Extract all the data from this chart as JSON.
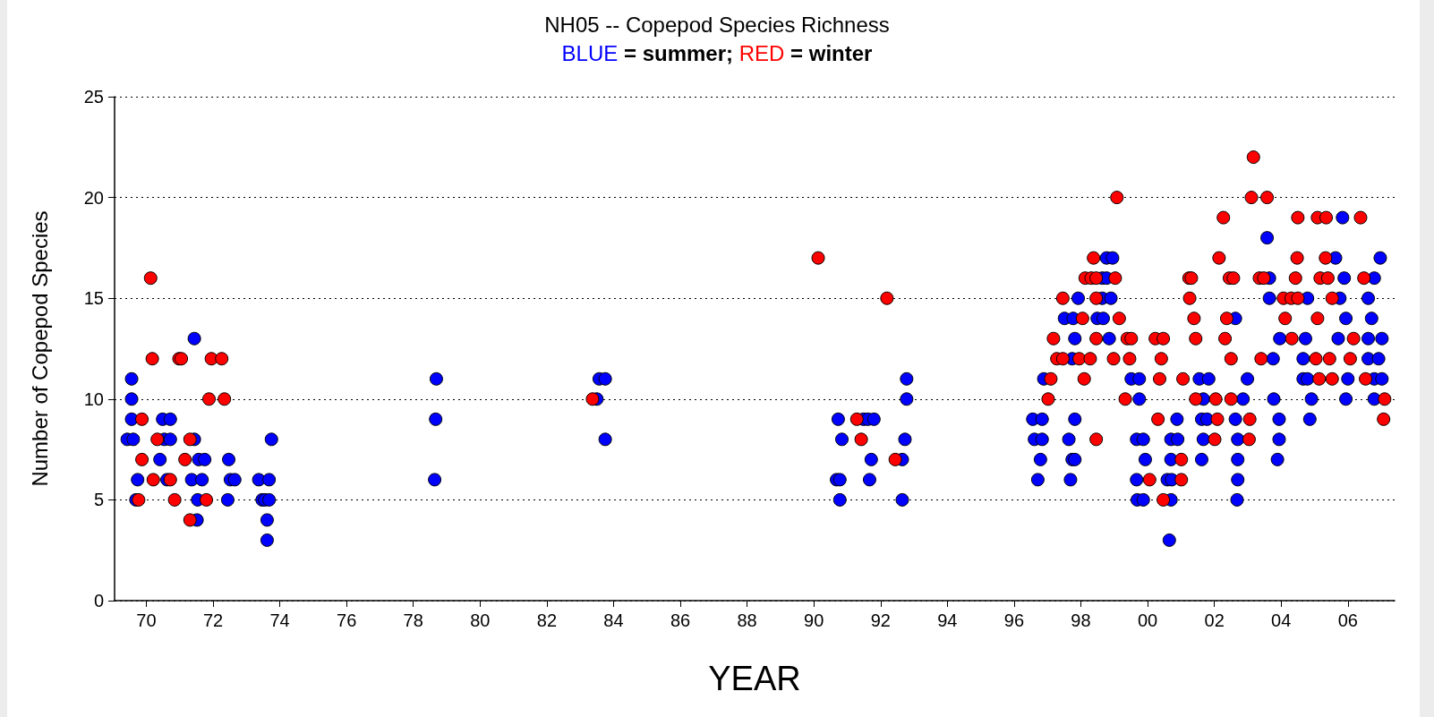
{
  "chart_data": {
    "type": "scatter",
    "title": "NH05 -- Copepod Species Richness",
    "subtitle": "BLUE = summer; RED = winter",
    "xlabel": "YEAR",
    "ylabel": "Number of Copepod Species",
    "xlim": [
      1969.05,
      2007.4
    ],
    "ylim": [
      0,
      25
    ],
    "yticks": [
      0,
      5,
      10,
      15,
      20,
      25
    ],
    "xticks": [
      {
        "value": 1970,
        "label": "70"
      },
      {
        "value": 1972,
        "label": "72"
      },
      {
        "value": 1974,
        "label": "74"
      },
      {
        "value": 1976,
        "label": "76"
      },
      {
        "value": 1978,
        "label": "78"
      },
      {
        "value": 1980,
        "label": "80"
      },
      {
        "value": 1982,
        "label": "82"
      },
      {
        "value": 1984,
        "label": "84"
      },
      {
        "value": 1986,
        "label": "86"
      },
      {
        "value": 1988,
        "label": "88"
      },
      {
        "value": 1990,
        "label": "90"
      },
      {
        "value": 1992,
        "label": "92"
      },
      {
        "value": 1994,
        "label": "94"
      },
      {
        "value": 1996,
        "label": "96"
      },
      {
        "value": 1998,
        "label": "98"
      },
      {
        "value": 2000,
        "label": "00"
      },
      {
        "value": 2002,
        "label": "02"
      },
      {
        "value": 2004,
        "label": "04"
      },
      {
        "value": 2006,
        "label": "06"
      }
    ],
    "grid": "y",
    "marker": "circle",
    "series": [
      {
        "color": "#0000ff",
        "x": [
          1969.56,
          1969.56,
          1969.56,
          1969.43,
          1969.61,
          1969.74,
          1969.69,
          1970.41,
          1970.49,
          1970.54,
          1970.62,
          1970.72,
          1970.72,
          1971.44,
          1971.44,
          1971.36,
          1971.52,
          1971.57,
          1971.67,
          1971.54,
          1971.75,
          1972.47,
          1972.52,
          1972.65,
          1972.44,
          1973.37,
          1973.47,
          1973.55,
          1973.62,
          1973.62,
          1973.68,
          1973.75,
          1973.68,
          1978.69,
          1978.67,
          1978.64,
          1983.5,
          1983.57,
          1983.75,
          1983.75,
          1990.73,
          1990.68,
          1990.78,
          1990.78,
          1990.84,
          1991.49,
          1991.62,
          1991.8,
          1991.72,
          1991.67,
          1992.65,
          1992.73,
          1992.65,
          1992.78,
          1992.78,
          1998.77,
          1998.95,
          1998.64,
          1998.77,
          1997.92,
          1998.64,
          1998.9,
          1997.51,
          1997.77,
          1998.49,
          1998.67,
          1997.82,
          1998.85,
          1997.74,
          1996.89,
          1999.51,
          1999.75,
          2001.55,
          1999.75,
          2001.67,
          1996.56,
          1996.84,
          1997.82,
          2000.88,
          2001.62,
          1996.61,
          1996.84,
          1997.64,
          1999.67,
          1999.87,
          2000.7,
          2000.9,
          2001.67,
          1996.79,
          1997.74,
          1997.82,
          1999.93,
          2000.7,
          2001.62,
          1996.71,
          1997.69,
          1999.67,
          2000.59,
          2000.72,
          1999.69,
          1999.87,
          2000.7,
          2000.65,
          2005.84,
          2003.58,
          2005.63,
          2006.97,
          2003.65,
          2005.89,
          2006.79,
          2003.65,
          2004.79,
          2005.76,
          2006.61,
          2002.63,
          2005.94,
          2006.71,
          2003.96,
          2004.73,
          2005.71,
          2006.61,
          2007.02,
          2003.76,
          2004.66,
          2006.61,
          2006.92,
          2001.83,
          2002.99,
          2004.66,
          2004.79,
          2006.0,
          2006.79,
          2007.02,
          2002.86,
          2003.78,
          2004.91,
          2005.94,
          2006.79,
          2001.78,
          2002.63,
          2003.94,
          2004.86,
          2002.7,
          2003.94,
          2002.7,
          2003.89,
          2002.7,
          2002.68
        ],
        "values": [
          11,
          10,
          9,
          8,
          8,
          6,
          5,
          7,
          9,
          8,
          6,
          9,
          8,
          13,
          8,
          6,
          4,
          7,
          6,
          5,
          7,
          7,
          6,
          6,
          5,
          6,
          5,
          5,
          4,
          3,
          6,
          8,
          5,
          11,
          9,
          6,
          10,
          11,
          11,
          8,
          9,
          6,
          6,
          5,
          8,
          9,
          9,
          9,
          7,
          6,
          7,
          8,
          5,
          10,
          11,
          17,
          17,
          16,
          16,
          15,
          15,
          15,
          14,
          14,
          14,
          14,
          13,
          13,
          12,
          11,
          11,
          11,
          11,
          10,
          10,
          9,
          9,
          9,
          9,
          9,
          8,
          8,
          8,
          8,
          8,
          8,
          8,
          8,
          7,
          7,
          7,
          7,
          7,
          7,
          6,
          6,
          6,
          6,
          6,
          5,
          5,
          5,
          3,
          19,
          18,
          17,
          17,
          16,
          16,
          16,
          15,
          15,
          15,
          15,
          14,
          14,
          14,
          13,
          13,
          13,
          13,
          13,
          12,
          12,
          12,
          12,
          11,
          11,
          11,
          11,
          11,
          11,
          11,
          10,
          10,
          10,
          10,
          10,
          9,
          9,
          9,
          9,
          8,
          8,
          7,
          7,
          6,
          5
        ]
      },
      {
        "color": "#ff0000",
        "x": [
          1969.87,
          1969.87,
          1969.77,
          1970.13,
          1970.18,
          1970.21,
          1970.33,
          1970.72,
          1970.85,
          1970.98,
          1971.05,
          1971.16,
          1971.31,
          1971.31,
          1971.8,
          1971.88,
          1971.95,
          1972.26,
          1972.34,
          1983.37,
          1990.13,
          1992.19,
          1991.29,
          1991.42,
          1992.44,
          1999.08,
          1998.38,
          1998.13,
          1998.31,
          1998.46,
          1999.03,
          2001.24,
          2001.31,
          1997.46,
          1998.46,
          2001.26,
          1998.05,
          1999.15,
          2001.39,
          1997.18,
          1998.46,
          1999.39,
          1999.51,
          2000.23,
          2000.47,
          2001.44,
          1997.28,
          1997.46,
          1997.95,
          1998.28,
          1998.98,
          1999.46,
          2000.41,
          1997.1,
          1998.1,
          2000.36,
          2001.06,
          1997.02,
          1999.33,
          2001.44,
          2000.31,
          1998.46,
          2001.01,
          2000.06,
          2001.01,
          2000.47,
          2003.17,
          2003.11,
          2003.58,
          2002.27,
          2004.5,
          2005.09,
          2005.35,
          2006.38,
          2002.14,
          2004.48,
          2005.33,
          2002.45,
          2002.57,
          2003.35,
          2003.48,
          2004.43,
          2005.17,
          2005.4,
          2006.48,
          2004.07,
          2004.3,
          2004.5,
          2005.53,
          2002.37,
          2004.12,
          2005.09,
          2002.32,
          2004.32,
          2006.17,
          2002.5,
          2003.4,
          2005.04,
          2005.45,
          2006.07,
          2005.14,
          2005.53,
          2006.53,
          2002.04,
          2002.5,
          2007.1,
          2002.09,
          2003.06,
          2007.07,
          2002.01,
          2003.04
        ],
        "values": [
          9,
          7,
          5,
          16,
          12,
          6,
          8,
          6,
          5,
          12,
          12,
          7,
          8,
          4,
          5,
          10,
          12,
          12,
          10,
          10,
          17,
          15,
          9,
          8,
          7,
          20,
          17,
          16,
          16,
          16,
          16,
          16,
          16,
          15,
          15,
          15,
          14,
          14,
          14,
          13,
          13,
          13,
          13,
          13,
          13,
          13,
          12,
          12,
          12,
          12,
          12,
          12,
          12,
          11,
          11,
          11,
          11,
          10,
          10,
          10,
          9,
          8,
          7,
          6,
          6,
          5,
          22,
          20,
          20,
          19,
          19,
          19,
          19,
          19,
          17,
          17,
          17,
          16,
          16,
          16,
          16,
          16,
          16,
          16,
          16,
          15,
          15,
          15,
          15,
          14,
          14,
          14,
          13,
          13,
          13,
          12,
          12,
          12,
          12,
          12,
          11,
          11,
          11,
          10,
          10,
          10,
          9,
          9,
          9,
          8,
          8
        ]
      }
    ]
  }
}
